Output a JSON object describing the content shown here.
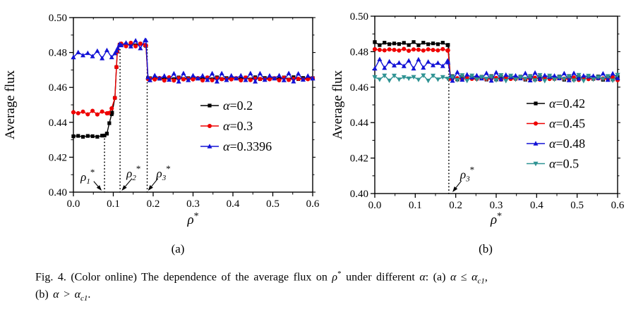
{
  "figure": {
    "panel_a_label": "(a)",
    "panel_b_label": "(b)"
  },
  "caption": {
    "segments": [
      {
        "t": "Fig. 4.  (Color online) The dependence of the average flux on "
      },
      {
        "t": "ρ",
        "i": 1
      },
      {
        "t": "*",
        "sup": 1
      },
      {
        "t": " under different "
      },
      {
        "t": "α",
        "i": 1
      },
      {
        "t": ": (a) "
      },
      {
        "t": "α",
        "i": 1
      },
      {
        "t": " ≤ "
      },
      {
        "t": "α",
        "i": 1
      },
      {
        "t": "c1",
        "sub": 1,
        "i": 1
      },
      {
        "t": ",",
        "nl": 1
      },
      {
        "t": "(b) "
      },
      {
        "t": "α",
        "i": 1
      },
      {
        "t": " > "
      },
      {
        "t": "α",
        "i": 1
      },
      {
        "t": "c1",
        "sub": 1,
        "i": 1
      },
      {
        "t": "."
      }
    ]
  },
  "colors": {
    "black": "#000000",
    "red": "#ee0000",
    "blue": "#1212d6",
    "teal": "#2f9393",
    "axis": "#000000",
    "background": "#ffffff"
  },
  "chart_data": [
    {
      "id": "a",
      "type": "line",
      "panel": "(a)",
      "title": "",
      "xlabel_base": "ρ",
      "xlabel_sup": "*",
      "ylabel": "Average flux",
      "xlim": [
        0.0,
        0.6
      ],
      "ylim": [
        0.4,
        0.5
      ],
      "xticks": [
        0.0,
        0.1,
        0.2,
        0.3,
        0.4,
        0.5,
        0.6
      ],
      "xtick_labels": [
        "0.0",
        "0.1",
        "0.2",
        "0.3",
        "0.4",
        "0.5",
        "0.6"
      ],
      "yticks": [
        0.4,
        0.42,
        0.44,
        0.46,
        0.48,
        0.5
      ],
      "ytick_labels": [
        "0.40",
        "0.42",
        "0.44",
        "0.46",
        "0.48",
        "0.50"
      ],
      "x_minor_step": 0.05,
      "y_minor_step": 0.01,
      "grid": false,
      "legend_position": "right-center-inside",
      "series": [
        {
          "label": "α=0.2",
          "color": "#000000",
          "marker": "square",
          "noise": 0.0006,
          "anchors": [
            [
              0.0,
              0.432
            ],
            [
              0.078,
              0.432
            ],
            [
              0.084,
              0.4335
            ],
            [
              0.09,
              0.4395
            ],
            [
              0.097,
              0.4455
            ],
            [
              0.104,
              0.454
            ],
            [
              0.11,
              0.4805
            ],
            [
              0.116,
              0.4845
            ],
            [
              0.182,
              0.4845
            ],
            [
              0.187,
              0.4652
            ],
            [
              0.6,
              0.4652
            ]
          ]
        },
        {
          "label": "α=0.3",
          "color": "#ee0000",
          "marker": "circle",
          "noise": 0.0008,
          "anchors": [
            [
              0.0,
              0.4455
            ],
            [
              0.088,
              0.4455
            ],
            [
              0.096,
              0.448
            ],
            [
              0.104,
              0.454
            ],
            [
              0.11,
              0.4805
            ],
            [
              0.116,
              0.4845
            ],
            [
              0.182,
              0.4845
            ],
            [
              0.187,
              0.4648
            ],
            [
              0.6,
              0.4648
            ]
          ]
        },
        {
          "label": "α=0.3396",
          "color": "#1212d6",
          "marker": "triangle-up",
          "noise": 0.0016,
          "anchors": [
            [
              0.0,
              0.479
            ],
            [
              0.104,
              0.479
            ],
            [
              0.111,
              0.4825
            ],
            [
              0.116,
              0.4848
            ],
            [
              0.182,
              0.4848
            ],
            [
              0.187,
              0.4658
            ],
            [
              0.6,
              0.4658
            ]
          ]
        }
      ],
      "vlines": [
        {
          "x": 0.078,
          "y_from": 0.4,
          "y_to": 0.432
        },
        {
          "x": 0.117,
          "y_from": 0.4,
          "y_to": 0.4845
        },
        {
          "x": 0.185,
          "y_from": 0.4,
          "y_to": 0.4845
        }
      ],
      "annotations": [
        {
          "base": "ρ",
          "sub": "1",
          "sup": "*",
          "x": 0.018,
          "y": 0.4065,
          "arrow_from": [
            0.051,
            0.4062
          ],
          "arrow_to": [
            0.071,
            0.4008
          ]
        },
        {
          "base": "ρ",
          "sub": "2",
          "sup": "*",
          "x": 0.133,
          "y": 0.4085,
          "arrow_from": [
            0.147,
            0.4078
          ],
          "arrow_to": [
            0.121,
            0.4008
          ]
        },
        {
          "base": "ρ",
          "sub": "3",
          "sup": "*",
          "x": 0.208,
          "y": 0.4085,
          "arrow_from": [
            0.212,
            0.4078
          ],
          "arrow_to": [
            0.187,
            0.4008
          ]
        }
      ]
    },
    {
      "id": "b",
      "type": "line",
      "panel": "(b)",
      "title": "",
      "xlabel_base": "ρ",
      "xlabel_sup": "*",
      "ylabel": "Average flux",
      "xlim": [
        0.0,
        0.6
      ],
      "ylim": [
        0.4,
        0.5
      ],
      "xticks": [
        0.0,
        0.1,
        0.2,
        0.3,
        0.4,
        0.5,
        0.6
      ],
      "xtick_labels": [
        "0.0",
        "0.1",
        "0.2",
        "0.3",
        "0.4",
        "0.5",
        "0.6"
      ],
      "yticks": [
        0.4,
        0.42,
        0.44,
        0.46,
        0.48,
        0.5
      ],
      "ytick_labels": [
        "0.40",
        "0.42",
        "0.44",
        "0.46",
        "0.48",
        "0.50"
      ],
      "x_minor_step": 0.05,
      "y_minor_step": 0.01,
      "grid": false,
      "legend_position": "right-center-inside",
      "series": [
        {
          "label": "α=0.42",
          "color": "#000000",
          "marker": "square",
          "noise": 0.0007,
          "anchors": [
            [
              0.0,
              0.4845
            ],
            [
              0.181,
              0.4845
            ],
            [
              0.187,
              0.4652
            ],
            [
              0.6,
              0.4652
            ]
          ]
        },
        {
          "label": "α=0.45",
          "color": "#ee0000",
          "marker": "circle",
          "noise": 0.0008,
          "anchors": [
            [
              0.0,
              0.481
            ],
            [
              0.181,
              0.481
            ],
            [
              0.187,
              0.4648
            ],
            [
              0.6,
              0.4648
            ]
          ]
        },
        {
          "label": "α=0.48",
          "color": "#1212d6",
          "marker": "triangle-up",
          "noise": 0.0018,
          "anchors": [
            [
              0.0,
              0.473
            ],
            [
              0.181,
              0.473
            ],
            [
              0.187,
              0.466
            ],
            [
              0.6,
              0.466
            ]
          ]
        },
        {
          "label": "α=0.5",
          "color": "#2f9393",
          "marker": "triangle-down",
          "noise": 0.0011,
          "anchors": [
            [
              0.0,
              0.4652
            ],
            [
              0.6,
              0.4652
            ]
          ]
        }
      ],
      "vlines": [
        {
          "x": 0.183,
          "y_from": 0.4,
          "y_to": 0.4845
        }
      ],
      "annotations": [
        {
          "base": "ρ",
          "sub": "3",
          "sup": "*",
          "x": 0.211,
          "y": 0.4085,
          "arrow_from": [
            0.214,
            0.4072
          ],
          "arrow_to": [
            0.192,
            0.4008
          ]
        }
      ]
    }
  ]
}
